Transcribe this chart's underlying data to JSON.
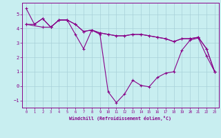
{
  "xlabel": "Windchill (Refroidissement éolien,°C)",
  "background_color": "#c8eef0",
  "grid_color": "#a8d0d8",
  "line_color": "#880088",
  "xlim": [
    -0.5,
    23.5
  ],
  "ylim": [
    -1.5,
    5.8
  ],
  "xticks": [
    0,
    1,
    2,
    3,
    4,
    5,
    6,
    7,
    8,
    9,
    10,
    11,
    12,
    13,
    14,
    15,
    16,
    17,
    18,
    19,
    20,
    21,
    22,
    23
  ],
  "yticks": [
    -1,
    0,
    1,
    2,
    3,
    4,
    5
  ],
  "line1_x": [
    0,
    1,
    2,
    3,
    4,
    5,
    6,
    7,
    8,
    9,
    10,
    11,
    12,
    13,
    14,
    15,
    16,
    17,
    18,
    19,
    20,
    21,
    22,
    23
  ],
  "line1_y": [
    5.4,
    4.3,
    4.7,
    4.1,
    4.6,
    4.6,
    4.3,
    3.8,
    3.9,
    3.7,
    3.6,
    3.5,
    3.5,
    3.6,
    3.6,
    3.5,
    3.4,
    3.3,
    3.1,
    3.3,
    3.3,
    3.4,
    2.6,
    1.0
  ],
  "line2_x": [
    0,
    1,
    2,
    3,
    4,
    5,
    6,
    7,
    8,
    9,
    10,
    11,
    12,
    13,
    14,
    15,
    16,
    17,
    18,
    19,
    20,
    21,
    22,
    23
  ],
  "line2_y": [
    4.3,
    4.3,
    4.7,
    4.1,
    4.6,
    4.6,
    4.3,
    3.8,
    3.9,
    3.7,
    3.6,
    3.5,
    3.5,
    3.6,
    3.6,
    3.5,
    3.4,
    3.3,
    3.1,
    3.3,
    3.3,
    3.4,
    2.6,
    1.0
  ],
  "line3_x": [
    0,
    2,
    3,
    4,
    5,
    6,
    7,
    8,
    9,
    10,
    11,
    12,
    13,
    14,
    15,
    16,
    17,
    18,
    19,
    20,
    21,
    22,
    23
  ],
  "line3_y": [
    4.3,
    4.1,
    4.1,
    4.6,
    4.6,
    3.6,
    2.6,
    3.9,
    3.6,
    -0.4,
    -1.15,
    -0.55,
    0.4,
    0.05,
    -0.05,
    0.6,
    0.9,
    1.0,
    2.5,
    3.2,
    3.35,
    2.1,
    1.0
  ]
}
